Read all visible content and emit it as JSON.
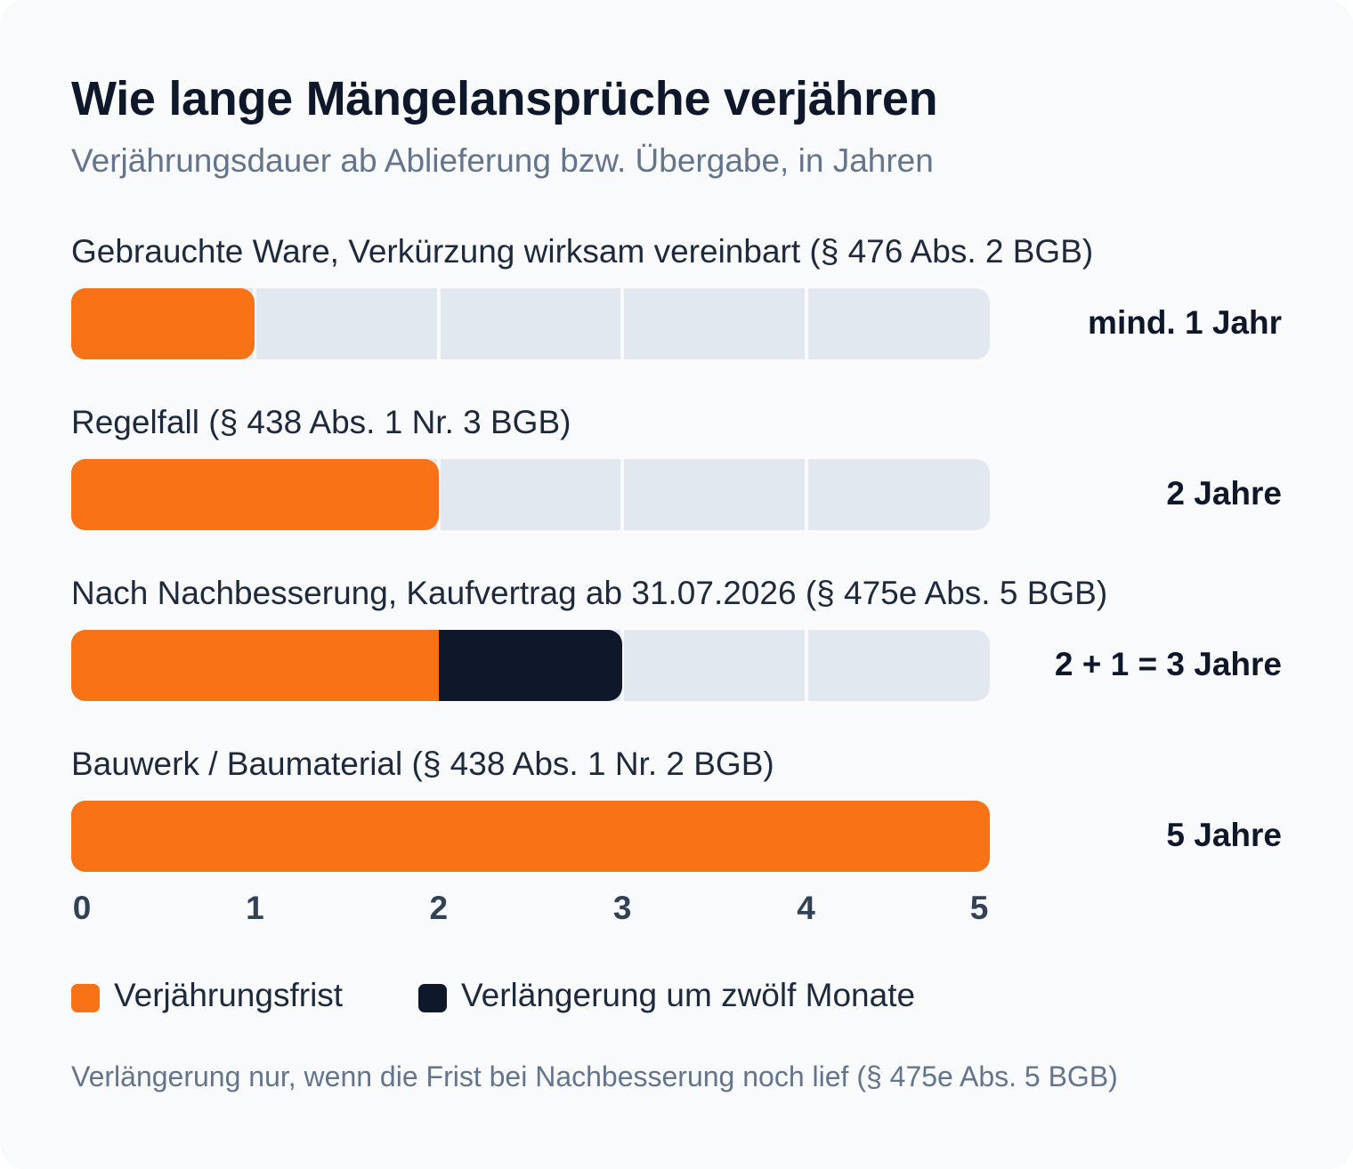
{
  "chart_data": {
    "type": "bar",
    "orientation": "horizontal",
    "stacked": true,
    "title": "Wie lange Mängelansprüche verjähren",
    "subtitle": "Verjährungsdauer ab Ablieferung bzw. Übergabe, in Jahren",
    "categories": [
      "Gebrauchte Ware, Verkürzung wirksam vereinbart (§ 476 Abs. 2 BGB)",
      "Regelfall (§ 438 Abs. 1 Nr. 3 BGB)",
      "Nach Nachbesserung, Kaufvertrag ab 31.07.2026 (§ 475e Abs. 5 BGB)",
      "Bauwerk / Baumaterial (§ 438 Abs. 1 Nr. 2 BGB)"
    ],
    "series": [
      {
        "name": "Verjährungsfrist",
        "color": "#f97316",
        "values": [
          1,
          2,
          2,
          5
        ]
      },
      {
        "name": "Verlängerung um zwölf Monate",
        "color": "#0f172a",
        "values": [
          0,
          0,
          1,
          0
        ]
      }
    ],
    "value_labels": [
      "mind. 1 Jahr",
      "2 Jahre",
      "2 + 1 = 3 Jahre",
      "5 Jahre"
    ],
    "xlim": [
      0,
      5
    ],
    "xticks": [
      "0",
      "1",
      "2",
      "3",
      "4",
      "5"
    ],
    "grid": true,
    "legend_position": "bottom-left",
    "footnote": "Verlängerung nur, wenn die Frist bei Nachbesserung noch lief (§ 475e Abs. 5 BGB)",
    "track_color": "#e2e8f0"
  }
}
